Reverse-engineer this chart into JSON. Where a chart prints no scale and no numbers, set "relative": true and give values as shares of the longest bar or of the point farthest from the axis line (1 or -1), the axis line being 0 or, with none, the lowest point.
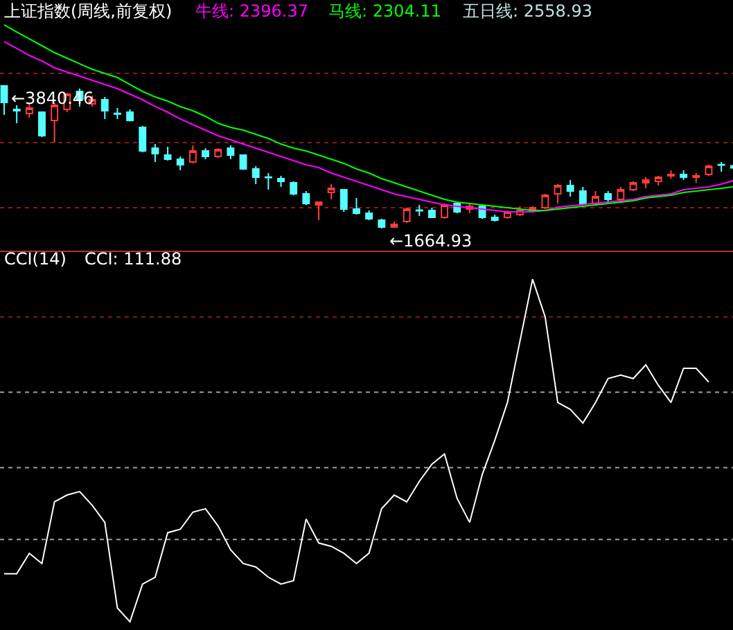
{
  "chart_data": [
    {
      "type": "candlestick",
      "title": "上证指数(周线,前复权)",
      "tick_labels": false,
      "grid": false,
      "legend": false,
      "categories": [
        null,
        null,
        null,
        null,
        null,
        null,
        null,
        null,
        null,
        null,
        null,
        null,
        null,
        null,
        null,
        null,
        null,
        null,
        null,
        null,
        null,
        null,
        null,
        null,
        null,
        null,
        null,
        null,
        null,
        null,
        null,
        null,
        null,
        null,
        null,
        null,
        null,
        null,
        null,
        null,
        null,
        null,
        null,
        null,
        null,
        null,
        null,
        null,
        null,
        null,
        null,
        null,
        null,
        null,
        null,
        null,
        null,
        null,
        null
      ],
      "ohlc": [
        [
          3840.46,
          3840.46,
          3397,
          3587
        ],
        [
          3481,
          3545,
          3270,
          3460
        ],
        [
          3418,
          3566,
          3355,
          3503
        ],
        [
          3439,
          3439,
          3059,
          3080
        ],
        [
          3312,
          3587,
          2974,
          3545
        ],
        [
          3481,
          3735,
          3439,
          3714
        ],
        [
          3756,
          3798,
          3524,
          3629
        ],
        [
          3566,
          3693,
          3524,
          3629
        ],
        [
          3629,
          3671,
          3334,
          3460
        ],
        [
          3420,
          3503,
          3334,
          3410
        ],
        [
          3439,
          3481,
          3300,
          3312
        ],
        [
          3207,
          3228,
          2827,
          2848
        ],
        [
          2890,
          2953,
          2679,
          2805
        ],
        [
          2784,
          2911,
          2700,
          2721
        ],
        [
          2721,
          2763,
          2552,
          2636
        ],
        [
          2679,
          2932,
          2658,
          2848
        ],
        [
          2848,
          2890,
          2721,
          2763
        ],
        [
          2763,
          2890,
          2742,
          2869
        ],
        [
          2890,
          2932,
          2721,
          2784
        ],
        [
          2784,
          2790,
          2560,
          2573
        ],
        [
          2573,
          2615,
          2341,
          2446
        ],
        [
          2450,
          2510,
          2256,
          2440
        ],
        [
          2425,
          2467,
          2298,
          2383
        ],
        [
          2362,
          2383,
          2172,
          2193
        ],
        [
          2193,
          2235,
          2024,
          2045
        ],
        [
          2024,
          2070,
          1792,
          2066
        ],
        [
          2214,
          2341,
          2109,
          2277
        ],
        [
          2256,
          2260,
          1918,
          1961
        ],
        [
          1961,
          2130,
          1876,
          1897
        ],
        [
          1897,
          1940,
          1792,
          1813
        ],
        [
          1792,
          1813,
          1664.93,
          1686
        ],
        [
          1686,
          1771,
          1675,
          1728
        ],
        [
          1771,
          1982,
          1750,
          1961
        ],
        [
          1945,
          2024,
          1855,
          1935
        ],
        [
          1940,
          1982,
          1830,
          1834
        ],
        [
          1834,
          2045,
          1813,
          2024
        ],
        [
          2045,
          2066,
          1897,
          1918
        ],
        [
          1961,
          2045,
          1897,
          2003
        ],
        [
          2003,
          2024,
          1813,
          1834
        ],
        [
          1834,
          1876,
          1771,
          1792
        ],
        [
          1834,
          1940,
          1813,
          1918
        ],
        [
          1876,
          2003,
          1855,
          1940
        ],
        [
          1940,
          2003,
          1918,
          1982
        ],
        [
          1982,
          2193,
          1961,
          2172
        ],
        [
          2193,
          2341,
          2045,
          2320
        ],
        [
          2320,
          2404,
          2151,
          2235
        ],
        [
          2235,
          2298,
          2024,
          2045
        ],
        [
          2045,
          2235,
          2024,
          2151
        ],
        [
          2193,
          2235,
          2045,
          2109
        ],
        [
          2109,
          2298,
          2066,
          2256
        ],
        [
          2256,
          2383,
          2235,
          2362
        ],
        [
          2362,
          2446,
          2277,
          2404
        ],
        [
          2383,
          2467,
          2320,
          2446
        ],
        [
          2467,
          2552,
          2425,
          2489
        ],
        [
          2489,
          2552,
          2404,
          2446
        ],
        [
          2446,
          2510,
          2362,
          2467
        ],
        [
          2489,
          2636,
          2467,
          2615
        ],
        [
          2640,
          2679,
          2531,
          2630
        ],
        [
          2620,
          2660,
          2560,
          2590
        ]
      ],
      "series": [
        {
          "name": "牛线: 2396.37",
          "type": "line",
          "color": "#ff00ff",
          "values": [
            4516,
            4411,
            4305,
            4220,
            4115,
            4051,
            3988,
            3925,
            3861,
            3798,
            3714,
            3629,
            3524,
            3439,
            3334,
            3249,
            3165,
            3080,
            3017,
            2953,
            2890,
            2827,
            2763,
            2700,
            2637,
            2594,
            2510,
            2446,
            2383,
            2320,
            2256,
            2193,
            2151,
            2109,
            2066,
            2024,
            2003,
            1982,
            1961,
            1940,
            1918,
            1918,
            1918,
            1940,
            1990,
            2010,
            2030,
            2050,
            2070,
            2087,
            2109,
            2151,
            2172,
            2193,
            2256,
            2277,
            2298,
            2341,
            2396.37
          ]
        },
        {
          "name": "马线: 2304.11",
          "type": "line",
          "color": "#00ff00",
          "values": [
            4770,
            4664,
            4558,
            4453,
            4347,
            4263,
            4178,
            4094,
            4030,
            3967,
            3861,
            3756,
            3671,
            3608,
            3524,
            3460,
            3376,
            3270,
            3207,
            3165,
            3101,
            3038,
            2953,
            2890,
            2848,
            2784,
            2721,
            2658,
            2573,
            2510,
            2425,
            2362,
            2298,
            2235,
            2172,
            2109,
            2066,
            2045,
            2024,
            2003,
            1982,
            1961,
            1940,
            1940,
            1961,
            1982,
            2003,
            2024,
            2045,
            2066,
            2087,
            2130,
            2151,
            2172,
            2214,
            2235,
            2256,
            2277,
            2304.11
          ]
        }
      ],
      "annotations": [
        "五日线: 2558.93",
        "←3840.46",
        "←1664.93"
      ],
      "ref_lines": [
        {
          "axis": "y",
          "value": 4030,
          "color": "#8b1a1a",
          "line_style": "dotted"
        },
        {
          "axis": "y",
          "value": 2974,
          "color": "#8b1a1a",
          "line_style": "dotted"
        },
        {
          "axis": "y",
          "value": 1982,
          "color": "#8b1a1a",
          "line_style": "dotted"
        }
      ]
    },
    {
      "type": "line",
      "title": "CCI(14)",
      "relative": true,
      "tick_labels": false,
      "grid": false,
      "legend": false,
      "marker": "none",
      "line_style": "solid",
      "categories": [
        null,
        null,
        null,
        null,
        null,
        null,
        null,
        null,
        null,
        null,
        null,
        null,
        null,
        null,
        null,
        null,
        null,
        null,
        null,
        null,
        null,
        null,
        null,
        null,
        null,
        null,
        null,
        null,
        null,
        null,
        null,
        null,
        null,
        null,
        null,
        null,
        null,
        null,
        null,
        null,
        null,
        null,
        null,
        null,
        null,
        null,
        null,
        null,
        null,
        null,
        null,
        null,
        null,
        null,
        null,
        null,
        null,
        null,
        null
      ],
      "series": [
        {
          "color": "#ffffff",
          "values": [
            0.14,
            0.14,
            0.2,
            0.17,
            0.35,
            0.37,
            0.38,
            0.34,
            0.29,
            0.04,
            0,
            0.11,
            0.13,
            0.26,
            0.27,
            0.32,
            0.33,
            0.28,
            0.21,
            0.17,
            0.16,
            0.13,
            0.11,
            0.12,
            0.3,
            0.23,
            0.22,
            0.2,
            0.17,
            0.2,
            0.33,
            0.37,
            0.35,
            0.41,
            0.46,
            0.49,
            0.36,
            0.29,
            0.43,
            0.53,
            0.64,
            0.82,
            1,
            0.89,
            0.64,
            0.62,
            0.58,
            0.64,
            0.71,
            0.72,
            0.71,
            0.75,
            0.69,
            0.64,
            0.74,
            0.74,
            0.7,
            null,
            null
          ]
        }
      ],
      "annotations": [
        "CCI: 111.88"
      ],
      "ref_lines": [
        {
          "axis": "y",
          "value": 0.89,
          "color": "#8b1a1a",
          "line_style": "dotted"
        },
        {
          "axis": "y",
          "value": 0.67,
          "color": "#a0a0a0",
          "line_style": "dotted"
        },
        {
          "axis": "y",
          "value": 0.45,
          "color": "#a0a0a0",
          "line_style": "dotted"
        },
        {
          "axis": "y",
          "value": 0.24,
          "color": "#a0a0a0",
          "line_style": "dotted"
        }
      ]
    }
  ]
}
